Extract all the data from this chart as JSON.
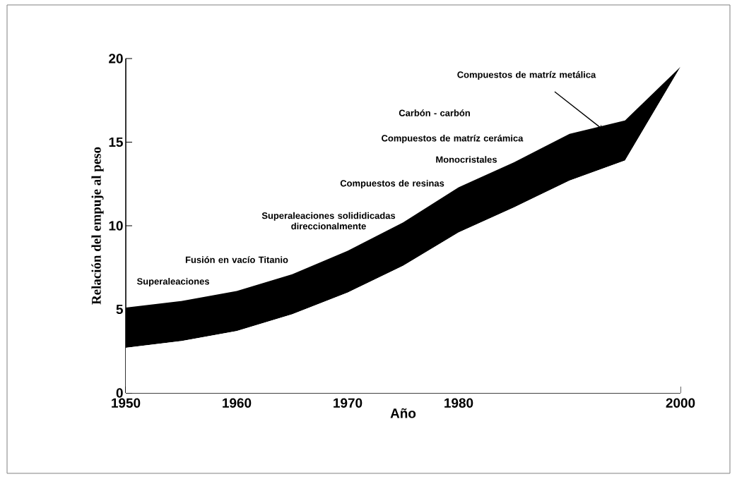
{
  "chart_data": {
    "type": "area",
    "stacked": true,
    "xlabel": "Año",
    "ylabel": "Relación del empuje al peso",
    "xlim": [
      1950,
      2000
    ],
    "ylim": [
      0,
      20
    ],
    "xticks": [
      1950,
      1960,
      1970,
      1980,
      2000
    ],
    "yticks": [
      0,
      5,
      10,
      15,
      20
    ],
    "series": [
      {
        "color": "#ffffff",
        "x": [
          1950,
          1955,
          1960,
          1965,
          1970,
          1975,
          1980,
          1985,
          1990,
          1995,
          2000
        ],
        "values": [
          2.7,
          3.1,
          3.7,
          4.7,
          6.0,
          7.6,
          9.6,
          11.1,
          12.7,
          13.9,
          19.5
        ]
      },
      {
        "color": "#000000",
        "x": [
          1950,
          1955,
          1960,
          1965,
          1970,
          1975,
          1980,
          1985,
          1990,
          1995,
          2000
        ],
        "values": [
          2.4,
          2.4,
          2.4,
          2.4,
          2.5,
          2.6,
          2.7,
          2.7,
          2.8,
          2.4,
          0
        ]
      }
    ],
    "annotations": [
      "Superaleaciones",
      "Fusión en vacío Titanio",
      "Superaleaciones solididicadas direccionalmente",
      "Compuestos de resinas",
      "Monocristales",
      "Compuestos de matríz cerámica",
      "Carbón - carbón",
      "Compuestos de matríz metálica"
    ]
  }
}
